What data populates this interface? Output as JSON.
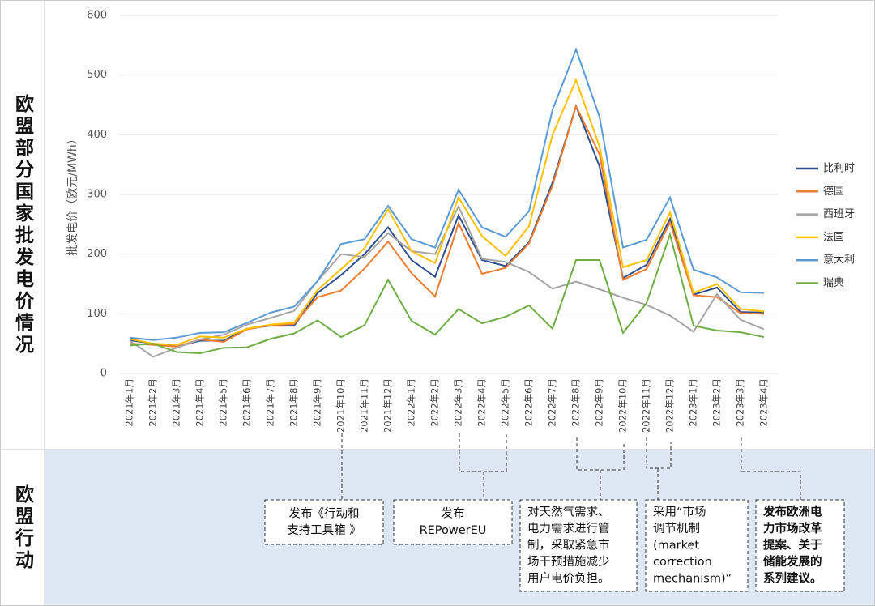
{
  "side_labels": {
    "chart": "欧盟部分国家批发电价情况",
    "actions": "欧盟行动"
  },
  "chart_data": {
    "type": "line",
    "y_label": "批发电价（欧元/MWh）",
    "categories": [
      "2021年1月",
      "2021年2月",
      "2021年3月",
      "2021年4月",
      "2021年5月",
      "2021年6月",
      "2021年7月",
      "2021年8月",
      "2021年9月",
      "2021年10月",
      "2021年11月",
      "2021年12月",
      "2022年1月",
      "2022年2月",
      "2022年3月",
      "2022年4月",
      "2022年5月",
      "2022年6月",
      "2022年7月",
      "2022年8月",
      "2022年9月",
      "2022年10月",
      "2022年11月",
      "2022年12月",
      "2023年1月",
      "2023年2月",
      "2023年3月",
      "2023年4月"
    ],
    "series": [
      {
        "name": "比利时",
        "color": "#2f4f8f",
        "values": [
          56,
          50,
          45,
          55,
          55,
          75,
          80,
          80,
          135,
          165,
          200,
          245,
          190,
          162,
          265,
          190,
          180,
          220,
          320,
          448,
          347,
          160,
          182,
          259,
          132,
          144,
          103,
          102
        ]
      },
      {
        "name": "德国",
        "color": "#ed7d31",
        "values": [
          50,
          48,
          45,
          57,
          53,
          74,
          81,
          83,
          128,
          139,
          176,
          221,
          168,
          129,
          252,
          167,
          177,
          218,
          315,
          448,
          367,
          157,
          175,
          253,
          131,
          128,
          101,
          100
        ]
      },
      {
        "name": "西班牙",
        "color": "#a5a5a5",
        "values": [
          55,
          28,
          43,
          57,
          65,
          82,
          93,
          105,
          155,
          200,
          195,
          235,
          205,
          200,
          280,
          192,
          187,
          170,
          142,
          154,
          141,
          127,
          115,
          97,
          70,
          133,
          90,
          74
        ]
      },
      {
        "name": "法国",
        "color": "#ffc000",
        "values": [
          58,
          50,
          48,
          62,
          60,
          75,
          82,
          85,
          140,
          175,
          210,
          275,
          205,
          185,
          295,
          230,
          197,
          247,
          400,
          492,
          380,
          178,
          190,
          270,
          135,
          150,
          108,
          104
        ]
      },
      {
        "name": "意大利",
        "color": "#5b9bd5",
        "values": [
          60,
          56,
          60,
          68,
          69,
          85,
          102,
          112,
          155,
          217,
          225,
          281,
          225,
          211,
          308,
          245,
          229,
          272,
          442,
          543,
          430,
          211,
          224,
          295,
          174,
          161,
          136,
          135
        ]
      },
      {
        "name": "瑞典",
        "color": "#70ad47",
        "values": [
          47,
          50,
          36,
          34,
          43,
          44,
          58,
          67,
          89,
          61,
          81,
          157,
          88,
          65,
          108,
          84,
          95,
          114,
          75,
          190,
          190,
          68,
          118,
          233,
          80,
          72,
          69,
          61
        ]
      }
    ],
    "ylim": [
      0,
      600
    ],
    "yticks": [
      0,
      100,
      200,
      300,
      400,
      500,
      600
    ],
    "grid": true,
    "legend": "right"
  },
  "actions": [
    {
      "lines": [
        "发布《行动和",
        "支持工具箱 》"
      ]
    },
    {
      "lines": [
        "发布",
        "REPowerEU"
      ]
    },
    {
      "lines": [
        "对天然气需求、",
        "电力需求进行管",
        "制，采取紧急市",
        "场干预措施减少",
        "用户电价负担。"
      ]
    },
    {
      "lines": [
        "采用“市场",
        "调节机制",
        "(market",
        "correction",
        "mechanism)”"
      ]
    },
    {
      "lines": [
        "发布欧洲电",
        "力市场改革",
        "提案、关于",
        "储能发展的",
        "系列建议。"
      ]
    }
  ]
}
